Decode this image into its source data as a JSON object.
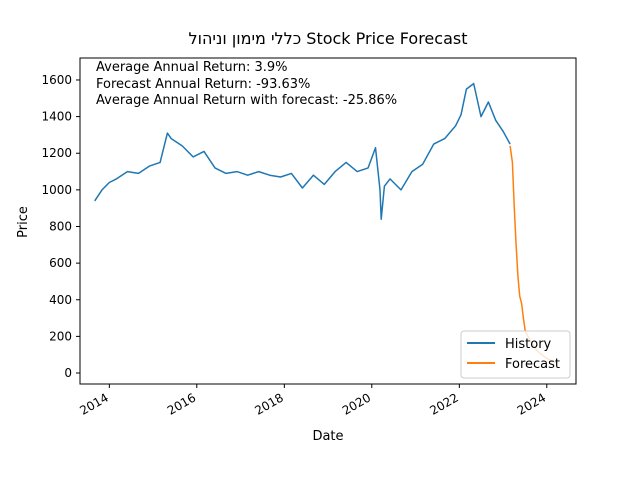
{
  "chart_data": {
    "type": "line",
    "title": "כללי מימון וניהול Stock Price Forecast",
    "xlabel": "Date",
    "ylabel": "Price",
    "xlim": [
      "2013-05-01",
      "2024-09-01"
    ],
    "ylim": [
      -60,
      1720
    ],
    "x_ticks": [
      "2014-01-01",
      "2016-01-01",
      "2018-01-01",
      "2020-01-01",
      "2022-01-01",
      "2024-01-01"
    ],
    "x_tick_labels": [
      "2014",
      "2016",
      "2018",
      "2020",
      "2022",
      "2024"
    ],
    "y_ticks": [
      0,
      200,
      400,
      600,
      800,
      1000,
      1200,
      1400,
      1600
    ],
    "grid": false,
    "legend_position": "bottom-right",
    "annotations": [
      "Average Annual Return: 3.9%",
      "Forecast Annual Return: -93.63%",
      "Average Annual Return with forecast: -25.86%"
    ],
    "series": [
      {
        "name": "History",
        "color": "#1f77b4",
        "x": [
          "2013-09-01",
          "2013-11-01",
          "2014-01-01",
          "2014-03-01",
          "2014-06-01",
          "2014-09-01",
          "2014-12-01",
          "2015-03-01",
          "2015-05-01",
          "2015-06-01",
          "2015-09-01",
          "2015-12-01",
          "2016-03-01",
          "2016-06-01",
          "2016-09-01",
          "2016-12-01",
          "2017-03-01",
          "2017-06-01",
          "2017-09-01",
          "2017-12-01",
          "2018-03-01",
          "2018-06-01",
          "2018-09-01",
          "2018-12-01",
          "2019-03-01",
          "2019-06-01",
          "2019-09-01",
          "2019-12-01",
          "2020-02-01",
          "2020-03-10",
          "2020-03-20",
          "2020-04-15",
          "2020-06-01",
          "2020-09-01",
          "2020-12-01",
          "2021-03-01",
          "2021-06-01",
          "2021-09-01",
          "2021-12-01",
          "2022-01-15",
          "2022-03-01",
          "2022-05-01",
          "2022-07-01",
          "2022-09-01",
          "2022-11-01",
          "2023-01-01",
          "2023-03-01"
        ],
        "y": [
          940,
          1000,
          1040,
          1060,
          1100,
          1090,
          1130,
          1150,
          1310,
          1280,
          1240,
          1180,
          1210,
          1120,
          1090,
          1100,
          1080,
          1100,
          1080,
          1070,
          1090,
          1010,
          1080,
          1030,
          1100,
          1150,
          1100,
          1120,
          1230,
          1000,
          840,
          1020,
          1060,
          1000,
          1100,
          1140,
          1250,
          1280,
          1350,
          1410,
          1550,
          1580,
          1400,
          1480,
          1380,
          1320,
          1250
        ]
      },
      {
        "name": "Forecast",
        "color": "#ff7f0e",
        "x": [
          "2023-03-01",
          "2023-03-20",
          "2023-04-05",
          "2023-04-20",
          "2023-05-05",
          "2023-05-20",
          "2023-06-05",
          "2023-06-20",
          "2023-07-05",
          "2023-07-20",
          "2023-08-05",
          "2023-09-01",
          "2023-10-01",
          "2023-11-01",
          "2023-12-01",
          "2024-01-01",
          "2024-02-01",
          "2024-03-01",
          "2024-04-01"
        ],
        "y": [
          1240,
          1150,
          900,
          700,
          530,
          420,
          380,
          300,
          230,
          210,
          190,
          160,
          130,
          110,
          95,
          80,
          70,
          60,
          55
        ]
      }
    ]
  }
}
